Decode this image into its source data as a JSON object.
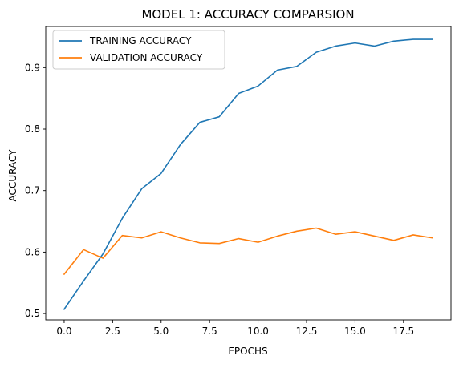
{
  "chart_data": {
    "type": "line",
    "title": "MODEL 1: ACCURACY COMPARSION",
    "xlabel": "EPOCHS",
    "ylabel": "ACCURACY",
    "xlim": [
      -0.95,
      19.95
    ],
    "ylim": [
      0.4897,
      0.9669
    ],
    "xticks": [
      0.0,
      2.5,
      5.0,
      7.5,
      10.0,
      12.5,
      15.0,
      17.5
    ],
    "xtick_labels": [
      "0.0",
      "2.5",
      "5.0",
      "7.5",
      "10.0",
      "12.5",
      "15.0",
      "17.5"
    ],
    "yticks": [
      0.5,
      0.6,
      0.7,
      0.8,
      0.9
    ],
    "ytick_labels": [
      "0.5",
      "0.6",
      "0.7",
      "0.8",
      "0.9"
    ],
    "grid": false,
    "legend_position": "top-left",
    "x": [
      0,
      1,
      2,
      3,
      4,
      5,
      6,
      7,
      8,
      9,
      10,
      11,
      12,
      13,
      14,
      15,
      16,
      17,
      18,
      19
    ],
    "series": [
      {
        "name": "TRAINING ACCURACY",
        "color": "#1f77b4",
        "values": [
          0.507,
          0.553,
          0.597,
          0.655,
          0.703,
          0.728,
          0.775,
          0.811,
          0.82,
          0.858,
          0.87,
          0.896,
          0.902,
          0.925,
          0.935,
          0.94,
          0.935,
          0.943,
          0.946,
          0.946
        ]
      },
      {
        "name": "VALIDATION ACCURACY",
        "color": "#ff7f0e",
        "values": [
          0.564,
          0.604,
          0.59,
          0.627,
          0.623,
          0.633,
          0.623,
          0.615,
          0.614,
          0.622,
          0.616,
          0.626,
          0.634,
          0.639,
          0.629,
          0.633,
          0.626,
          0.619,
          0.628,
          0.623
        ]
      }
    ]
  }
}
